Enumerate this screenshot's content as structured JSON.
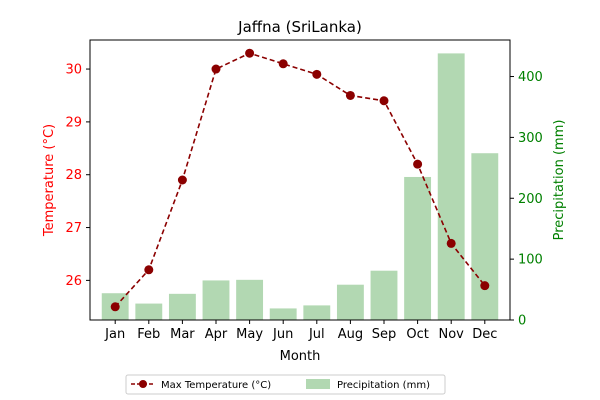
{
  "chart_data": {
    "type": "bar+line",
    "title": "Jaffna (SriLanka)",
    "xlabel": "Month",
    "ylabel_left": "Temperature (°C)",
    "ylabel_right": "Precipitation (mm)",
    "categories": [
      "Jan",
      "Feb",
      "Mar",
      "Apr",
      "May",
      "Jun",
      "Jul",
      "Aug",
      "Sep",
      "Oct",
      "Nov",
      "Dec"
    ],
    "series": [
      {
        "name": "Max Temperature (°C)",
        "type": "line",
        "axis": "left",
        "color": "#8b0000",
        "values": [
          25.5,
          26.2,
          27.9,
          30.0,
          30.3,
          30.1,
          29.9,
          29.5,
          29.4,
          28.2,
          26.7,
          25.9
        ]
      },
      {
        "name": "Precipitation (mm)",
        "type": "bar",
        "axis": "right",
        "color": "#b2d8b2",
        "values": [
          44,
          27,
          43,
          65,
          66,
          19,
          24,
          58,
          81,
          235,
          438,
          274
        ]
      }
    ],
    "ylim_left": [
      25.25,
      30.55
    ],
    "ylim_right": [
      0,
      460
    ],
    "yticks_left": [
      "26",
      "27",
      "28",
      "29",
      "30"
    ],
    "yticks_right": [
      "0",
      "100",
      "200",
      "300",
      "400"
    ],
    "left_axis_color": "#ff0000",
    "right_axis_color": "#008000",
    "grid": false,
    "legend_placement": "bottom-center"
  }
}
